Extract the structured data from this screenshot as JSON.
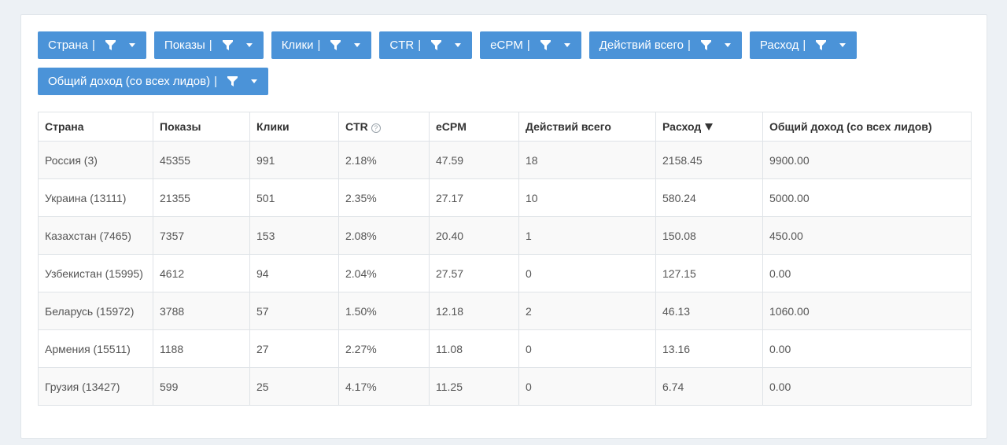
{
  "filters": [
    {
      "label": "Страна",
      "sep": "|"
    },
    {
      "label": "Показы",
      "sep": "|"
    },
    {
      "label": "Клики",
      "sep": "|"
    },
    {
      "label": "CTR",
      "sep": "|"
    },
    {
      "label": "eCPM",
      "sep": "|"
    },
    {
      "label": "Действий всего",
      "sep": "|"
    },
    {
      "label": "Расход",
      "sep": "|"
    },
    {
      "label": "Общий доход (со всех лидов)",
      "sep": "|"
    }
  ],
  "table": {
    "headers": [
      "Страна",
      "Показы",
      "Клики",
      "CTR",
      "eCPM",
      "Действий всего",
      "Расход",
      "Общий доход (со всех лидов)"
    ],
    "help_icon_glyph": "?",
    "rows": [
      [
        "Россия (3)",
        "45355",
        "991",
        "2.18%",
        "47.59",
        "18",
        "2158.45",
        "9900.00"
      ],
      [
        "Украина (13111)",
        "21355",
        "501",
        "2.35%",
        "27.17",
        "10",
        "580.24",
        "5000.00"
      ],
      [
        "Казахстан (7465)",
        "7357",
        "153",
        "2.08%",
        "20.40",
        "1",
        "150.08",
        "450.00"
      ],
      [
        "Узбекистан (15995)",
        "4612",
        "94",
        "2.04%",
        "27.57",
        "0",
        "127.15",
        "0.00"
      ],
      [
        "Беларусь (15972)",
        "3788",
        "57",
        "1.50%",
        "12.18",
        "2",
        "46.13",
        "1060.00"
      ],
      [
        "Армения (15511)",
        "1188",
        "27",
        "2.27%",
        "11.08",
        "0",
        "13.16",
        "0.00"
      ],
      [
        "Грузия (13427)",
        "599",
        "25",
        "4.17%",
        "11.25",
        "0",
        "6.74",
        "0.00"
      ]
    ]
  },
  "colors": {
    "button_bg": "#4b93d8",
    "page_bg": "#edf1f5",
    "row_alt_bg": "#f9f9f9"
  }
}
